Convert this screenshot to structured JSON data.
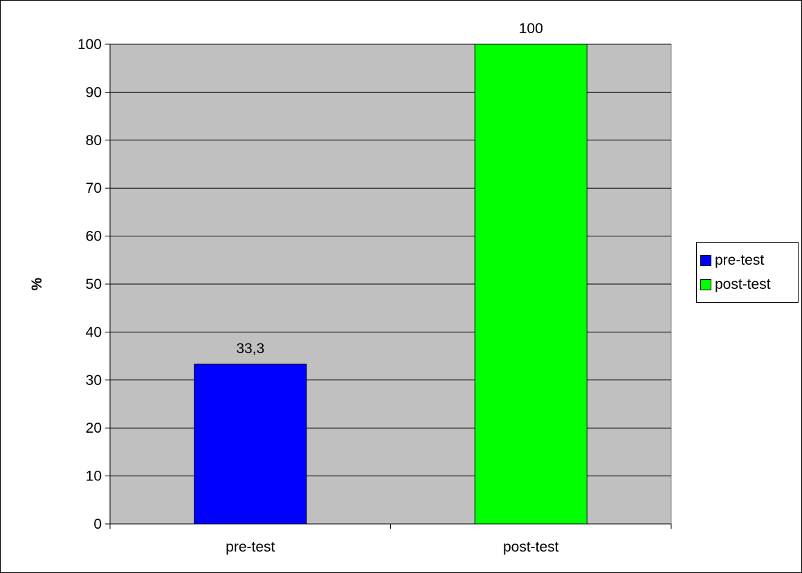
{
  "chart_data": {
    "type": "bar",
    "categories": [
      "pre-test",
      "post-test"
    ],
    "values": [
      33.3,
      100
    ],
    "data_labels": [
      "33,3",
      "100"
    ],
    "bar_colors": [
      "#0000ff",
      "#00ff00"
    ],
    "ylabel": "%",
    "xlabel": "",
    "ylim": [
      0,
      100
    ],
    "yticks": [
      0,
      10,
      20,
      30,
      40,
      50,
      60,
      70,
      80,
      90,
      100
    ],
    "grid": true,
    "plot_background": "#c0c0c0",
    "legend_position": "right",
    "legend": [
      {
        "label": "pre-test",
        "color": "#0000ff"
      },
      {
        "label": "post-test",
        "color": "#00ff00"
      }
    ]
  }
}
